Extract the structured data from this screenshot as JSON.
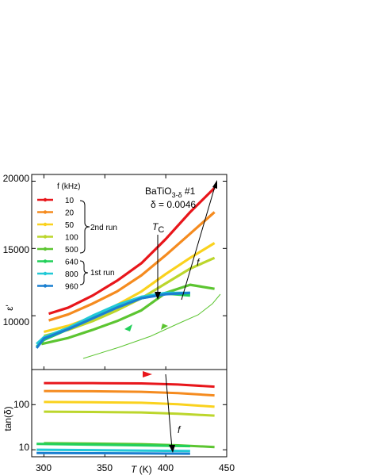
{
  "chart_data": [
    {
      "type": "line",
      "panel": "top",
      "title": "BaTiO",
      "title_sub": "3-δ",
      "title_suffix": " #1",
      "subtitle": "δ = 0.0046",
      "xlabel_italic": "T",
      "xlabel_rest": " (K)",
      "ylabel": "ε'",
      "xlim": [
        290,
        450
      ],
      "ylim": [
        6000,
        20500
      ],
      "xticks": [
        300,
        350,
        400,
        450
      ],
      "xtick_labels": [
        "300",
        "350",
        "400",
        "450"
      ],
      "yticks": [
        10000,
        15000,
        20000
      ],
      "ytick_labels": [
        "10000",
        "15000",
        "20000"
      ],
      "legend_title": "f (kHz)",
      "legend_position": "top-left",
      "group_labels": [
        "2nd run",
        "1st run"
      ],
      "annotations": {
        "tc_main": "T",
        "tc_sub": "C",
        "f_label": "f"
      },
      "series": [
        {
          "name": "10",
          "color": "#e8161b",
          "x": [
            304,
            320,
            340,
            360,
            380,
            400,
            420,
            440
          ],
          "y": [
            10150,
            10600,
            11500,
            12600,
            13900,
            15700,
            17700,
            19500
          ]
        },
        {
          "name": "20",
          "color": "#f58b1f",
          "x": [
            304,
            320,
            340,
            360,
            380,
            400,
            420,
            440
          ],
          "y": [
            9650,
            10100,
            10900,
            11800,
            13000,
            14500,
            16100,
            17700
          ]
        },
        {
          "name": "50",
          "color": "#fad21e",
          "x": [
            300,
            320,
            340,
            360,
            380,
            400,
            420,
            440
          ],
          "y": [
            8800,
            9250,
            9900,
            10800,
            11800,
            13100,
            14300,
            15400
          ]
        },
        {
          "name": "100",
          "color": "#bcd62c",
          "x": [
            300,
            320,
            340,
            360,
            380,
            400,
            420,
            440
          ],
          "y": [
            8500,
            8950,
            9600,
            10400,
            11300,
            12400,
            13500,
            14300
          ]
        },
        {
          "name": "500",
          "color": "#5cc531",
          "x": [
            298,
            320,
            340,
            360,
            380,
            400,
            420,
            440
          ],
          "y": [
            7900,
            8350,
            8950,
            9600,
            10400,
            11700,
            12300,
            12000
          ]
        },
        {
          "name": "640",
          "color": "#22d05a",
          "x": [
            294,
            300,
            320,
            340,
            360,
            380,
            400,
            420
          ],
          "y": [
            7700,
            8200,
            9000,
            9900,
            10700,
            11300,
            11650,
            11500
          ]
        },
        {
          "name": "800",
          "color": "#22c9d6",
          "x": [
            294,
            300,
            320,
            340,
            360,
            380,
            400,
            420
          ],
          "y": [
            7900,
            8400,
            9100,
            10000,
            10800,
            11400,
            11700,
            11700
          ]
        },
        {
          "name": "960",
          "color": "#1a7fd0",
          "x": [
            294,
            300,
            320,
            340,
            360,
            380,
            400,
            420
          ],
          "y": [
            7600,
            8300,
            9000,
            9800,
            10600,
            11300,
            11600,
            11700
          ]
        }
      ]
    },
    {
      "type": "line",
      "panel": "bottom",
      "ylabel": "tan(δ)",
      "yscale": "log",
      "ylim": [
        7,
        600
      ],
      "yticks": [
        10,
        100
      ],
      "ytick_labels": [
        "10",
        "100"
      ],
      "xlim": [
        290,
        450
      ],
      "series": [
        {
          "name": "10",
          "x": [
            300,
            340,
            380,
            410,
            440
          ],
          "y": [
            300,
            300,
            295,
            280,
            250
          ]
        },
        {
          "name": "20",
          "x": [
            300,
            340,
            380,
            410,
            440
          ],
          "y": [
            200,
            198,
            192,
            180,
            160
          ]
        },
        {
          "name": "50",
          "x": [
            300,
            340,
            380,
            410,
            440
          ],
          "y": [
            115,
            113,
            110,
            102,
            90
          ]
        },
        {
          "name": "100",
          "x": [
            300,
            340,
            380,
            410,
            440
          ],
          "y": [
            70,
            69,
            67,
            63,
            57
          ]
        },
        {
          "name": "500",
          "x": [
            300,
            340,
            380,
            410,
            440
          ],
          "y": [
            14,
            13.7,
            13.3,
            12.6,
            11.5
          ]
        },
        {
          "name": "640",
          "x": [
            294,
            340,
            380,
            420
          ],
          "y": [
            13.5,
            13,
            12.5,
            12
          ]
        },
        {
          "name": "800",
          "x": [
            294,
            340,
            380,
            420
          ],
          "y": [
            10,
            9.8,
            9.6,
            9.4
          ]
        },
        {
          "name": "960",
          "x": [
            294,
            340,
            380,
            420
          ],
          "y": [
            8.5,
            8.4,
            8.3,
            8.2
          ]
        }
      ]
    }
  ]
}
